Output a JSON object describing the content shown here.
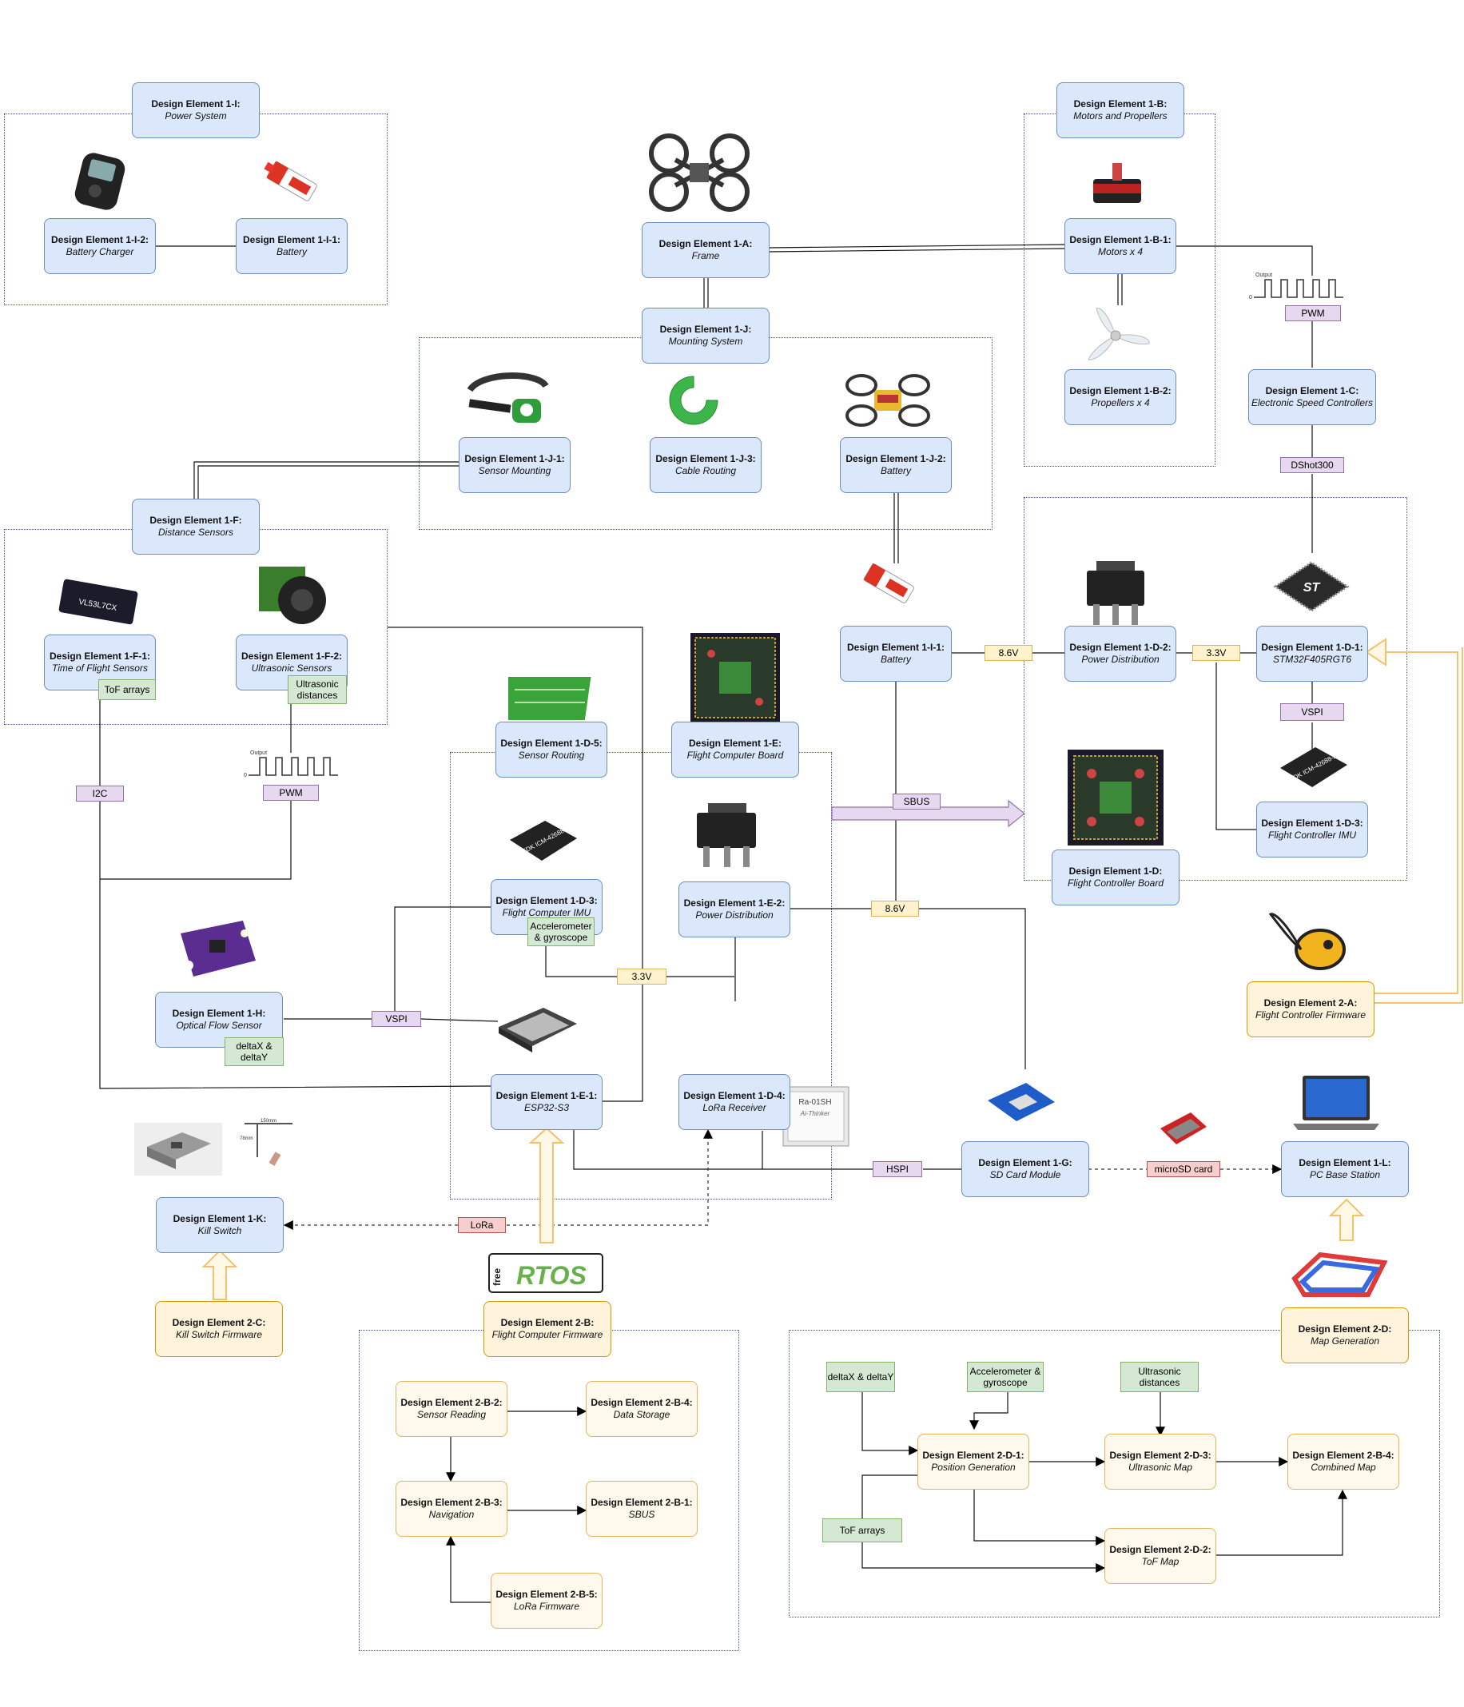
{
  "colors": {
    "blue_fill": "#dbe8fb",
    "blue_stroke": "#6c8ebf",
    "orange_fill": "#fff3dc",
    "orange_stroke": "#d79b00",
    "purple_tag": "#e6d8ee",
    "yellow_tag": "#fff2cc",
    "green_tag": "#d5e8d4",
    "red_tag": "#f8cecc",
    "firmware_arrow": "#f5c26b"
  },
  "nodes": {
    "n1i": {
      "title": "Design Element 1-I:",
      "sub": "Power System"
    },
    "n1i2": {
      "title": "Design Element 1-I-2:",
      "sub": "Battery Charger"
    },
    "n1i1a": {
      "title": "Design Element 1-I-1:",
      "sub": "Battery"
    },
    "n1a": {
      "title": "Design Element 1-A:",
      "sub": "Frame"
    },
    "n1b": {
      "title": "Design Element 1-B:",
      "sub": "Motors and Propellers"
    },
    "n1b1": {
      "title": "Design Element 1-B-1:",
      "sub": "Motors x 4"
    },
    "n1b2": {
      "title": "Design Element 1-B-2:",
      "sub": "Propellers x 4"
    },
    "n1c": {
      "title": "Design Element 1-C:",
      "sub": "Electronic Speed Controllers"
    },
    "n1j": {
      "title": "Design Element 1-J:",
      "sub": "Mounting System"
    },
    "n1j1": {
      "title": "Design Element 1-J-1:",
      "sub": "Sensor Mounting"
    },
    "n1j3": {
      "title": "Design Element 1-J-3:",
      "sub": "Cable Routing"
    },
    "n1j2": {
      "title": "Design Element 1-J-2:",
      "sub": "Battery"
    },
    "n1f": {
      "title": "Design Element 1-F:",
      "sub": "Distance Sensors"
    },
    "n1f1": {
      "title": "Design Element 1-F-1:",
      "sub": "Time of Flight Sensors"
    },
    "n1f2": {
      "title": "Design Element 1-F-2:",
      "sub": "Ultrasonic Sensors"
    },
    "n1i1b": {
      "title": "Design Element 1-I-1:",
      "sub": "Battery"
    },
    "n1d2": {
      "title": "Design Element 1-D-2:",
      "sub": "Power Distribution"
    },
    "n1d1": {
      "title": "Design Element 1-D-1:",
      "sub": "STM32F405RGT6"
    },
    "n1d3a": {
      "title": "Design Element 1-D-3:",
      "sub": "Flight Controller IMU"
    },
    "n1d": {
      "title": "Design Element 1-D:",
      "sub": "Flight Controller Board"
    },
    "n1d5": {
      "title": "Design Element 1-D-5:",
      "sub": "Sensor Routing"
    },
    "n1e": {
      "title": "Design Element 1-E:",
      "sub": "Flight Computer Board"
    },
    "n1d3b": {
      "title": "Design Element 1-D-3:",
      "sub": "Flight Computer IMU"
    },
    "n1e2": {
      "title": "Design Element 1-E-2:",
      "sub": "Power Distribution"
    },
    "n1h": {
      "title": "Design Element 1-H:",
      "sub": "Optical Flow Sensor"
    },
    "n1e1": {
      "title": "Design Element 1-E-1:",
      "sub": "ESP32-S3"
    },
    "n1d4": {
      "title": "Design Element 1-D-4:",
      "sub": "LoRa Receiver"
    },
    "n1g": {
      "title": "Design Element 1-G:",
      "sub": "SD Card Module"
    },
    "n1l": {
      "title": "Design Element 1-L:",
      "sub": "PC Base Station"
    },
    "n1k": {
      "title": "Design Element 1-K:",
      "sub": "Kill Switch"
    },
    "n2a": {
      "title": "Design Element 2-A:",
      "sub": "Flight Controller Firmware"
    },
    "n2c": {
      "title": "Design Element 2-C:",
      "sub": "Kill Switch Firmware"
    },
    "n2b": {
      "title": "Design Element 2-B:",
      "sub": "Flight Computer Firmware"
    },
    "n2d": {
      "title": "Design Element 2-D:",
      "sub": "Map Generation"
    },
    "n2b2": {
      "title": "Design Element 2-B-2:",
      "sub": "Sensor Reading"
    },
    "n2b4": {
      "title": "Design Element 2-B-4:",
      "sub": "Data Storage"
    },
    "n2b3": {
      "title": "Design Element 2-B-3:",
      "sub": "Navigation"
    },
    "n2b1": {
      "title": "Design Element 2-B-1:",
      "sub": "SBUS"
    },
    "n2b5": {
      "title": "Design Element 2-B-5:",
      "sub": "LoRa Firmware"
    },
    "n2d1": {
      "title": "Design Element 2-D-1:",
      "sub": "Position Generation"
    },
    "n2d3": {
      "title": "Design Element 2-D-3:",
      "sub": "Ultrasonic Map"
    },
    "n2b4m": {
      "title": "Design Element 2-B-4:",
      "sub": "Combined Map"
    },
    "n2d2": {
      "title": "Design Element 2-D-2:",
      "sub": "ToF Map"
    }
  },
  "tags": {
    "pwm_top": "PWM",
    "dshot": "DShot300",
    "v86_a": "8.6V",
    "v33_a": "3.3V",
    "vspi_a": "VSPI",
    "tof": "ToF arrays",
    "ultra": "Ultrasonic distances",
    "i2c": "I2C",
    "pwm_mid": "PWM",
    "sbus": "SBUS",
    "v86_b": "8.6V",
    "accel": "Accelerometer & gyroscope",
    "v33_b": "3.3V",
    "vspi_b": "VSPI",
    "deltaxy": "deltaX & deltaY",
    "hspi": "HSPI",
    "microsd": "microSD card",
    "lora": "LoRa",
    "map_dxy": "deltaX & deltaY",
    "map_accel": "Accelerometer & gyroscope",
    "map_ultra": "Ultrasonic distances",
    "map_tof": "ToF arrays"
  },
  "images": {
    "tof_chip_label": "VL53L7CX",
    "st_logo": "ST",
    "tdk_label_a": "TDK ICM-42688-P",
    "tdk_label_b": "TDK ICM-42688",
    "lora_module": "Ra-01SH",
    "lora_brand": "Ai-Thinker",
    "rtos_free": "free",
    "rtos_text": "RTOS",
    "killswitch_dim_a": "150mm",
    "killswitch_dim_b": "78mm",
    "pwm_wave_label": "Output"
  }
}
